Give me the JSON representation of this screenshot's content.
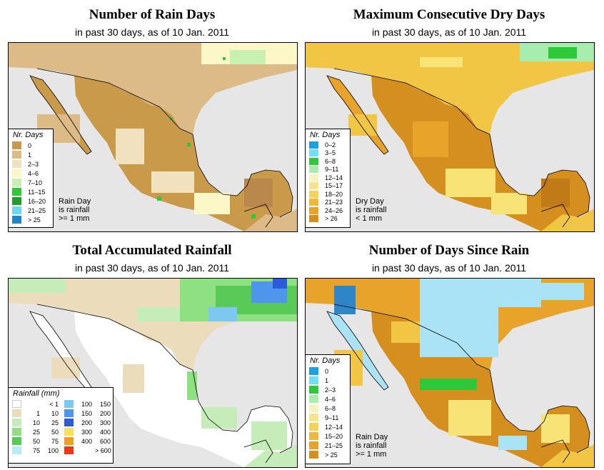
{
  "colors": {
    "land_rain_days": [
      "#c99a4a",
      "#dcbb87",
      "#f0e2bf",
      "#fbf7c7",
      "#7ddf5e"
    ],
    "land_dry_days": [
      "#d48f1f",
      "#e8a32a",
      "#f1c644",
      "#f8e476"
    ],
    "land_rainfall": [
      "#ffffff",
      "#ebdcbc",
      "#c5ecb9",
      "#8fe082",
      "#59c958",
      "#3e86e8"
    ],
    "land_since_rain": [
      "#d48f1f",
      "#e8a32a",
      "#f1c644",
      "#a9e3f5",
      "#30c83a"
    ],
    "ocean": "#e6e6e6",
    "border": "#000000"
  },
  "panels": [
    {
      "title": "Number of Rain Days",
      "subtitle": "in past 30 days, as of  10 Jan. 2011",
      "legend_title": "Nr. Days",
      "legend": [
        {
          "label": "0",
          "color": "#c99a4a"
        },
        {
          "label": "1",
          "color": "#dcbb87"
        },
        {
          "label": "2–3",
          "color": "#f0e2bf"
        },
        {
          "label": "4–6",
          "color": "#fbf7c7"
        },
        {
          "label": "7–10",
          "color": "#c8f0b0"
        },
        {
          "label": "11–15",
          "color": "#2ec93a"
        },
        {
          "label": "16–20",
          "color": "#1e9e2e"
        },
        {
          "label": "21–25",
          "color": "#6fd6f2"
        },
        {
          "label": "> 25",
          "color": "#1f86c8"
        }
      ],
      "note": [
        "Rain Day",
        "is rainfall",
        ">= 1 mm"
      ]
    },
    {
      "title": "Maximum Consecutive Dry Days",
      "subtitle": "in past 30 days, as of  10 Jan. 2011",
      "legend_title": "Nr. Days",
      "legend": [
        {
          "label": "0–2",
          "color": "#1f9ee0"
        },
        {
          "label": "3–5",
          "color": "#6ee0f5"
        },
        {
          "label": "6–8",
          "color": "#2ec93a"
        },
        {
          "label": "9–11",
          "color": "#a8ecb0"
        },
        {
          "label": "12–14",
          "color": "#f7f3c0"
        },
        {
          "label": "15–17",
          "color": "#f8e48c"
        },
        {
          "label": "18–20",
          "color": "#f5d25a"
        },
        {
          "label": "21–23",
          "color": "#f0b73a"
        },
        {
          "label": "24–26",
          "color": "#e8a32a"
        },
        {
          "label": "> 26",
          "color": "#d48f1f"
        }
      ],
      "note": [
        "Dry Day",
        "is rainfall",
        "< 1 mm"
      ]
    },
    {
      "title": "Total Accumulated Rainfall",
      "subtitle": "in past 30 days, as of  10 Jan. 2011",
      "legend_title": "Rainfall (mm)",
      "legend_left": [
        {
          "lo": "",
          "hi": "< 1",
          "color": "#ffffff"
        },
        {
          "lo": "1",
          "hi": "10",
          "color": "#ebdcbc"
        },
        {
          "lo": "10",
          "hi": "25",
          "color": "#c5ecb9"
        },
        {
          "lo": "25",
          "hi": "50",
          "color": "#8fe082"
        },
        {
          "lo": "50",
          "hi": "75",
          "color": "#59c958"
        },
        {
          "lo": "75",
          "hi": "100",
          "color": "#b8ecf8"
        }
      ],
      "legend_right": [
        {
          "lo": "100",
          "hi": "150",
          "color": "#7cc8f0"
        },
        {
          "lo": "150",
          "hi": "200",
          "color": "#4d96ec"
        },
        {
          "lo": "200",
          "hi": "300",
          "color": "#2b5bd8"
        },
        {
          "lo": "300",
          "hi": "400",
          "color": "#f7e05a"
        },
        {
          "lo": "400",
          "hi": "600",
          "color": "#f0a020"
        },
        {
          "lo": "",
          "hi": "> 600",
          "color": "#e83a1a"
        }
      ]
    },
    {
      "title": "Number of Days Since Rain",
      "subtitle": "in past 30 days, as of  10 Jan. 2011",
      "legend_title": "Nr. Days",
      "legend": [
        {
          "label": "0",
          "color": "#1f9ee0"
        },
        {
          "label": "1",
          "color": "#6ee0f5"
        },
        {
          "label": "2–3",
          "color": "#2ec93a"
        },
        {
          "label": "4–6",
          "color": "#a8ecb0"
        },
        {
          "label": "6–8",
          "color": "#f7f3c0"
        },
        {
          "label": "9–11",
          "color": "#f8e48c"
        },
        {
          "label": "12–14",
          "color": "#f5d25a"
        },
        {
          "label": "15–20",
          "color": "#f0b73a"
        },
        {
          "label": "21–25",
          "color": "#e8a32a"
        },
        {
          "label": "> 25",
          "color": "#d48f1f"
        }
      ],
      "note": [
        "Rain Day",
        "is rainfall",
        ">= 1 mm"
      ]
    }
  ]
}
